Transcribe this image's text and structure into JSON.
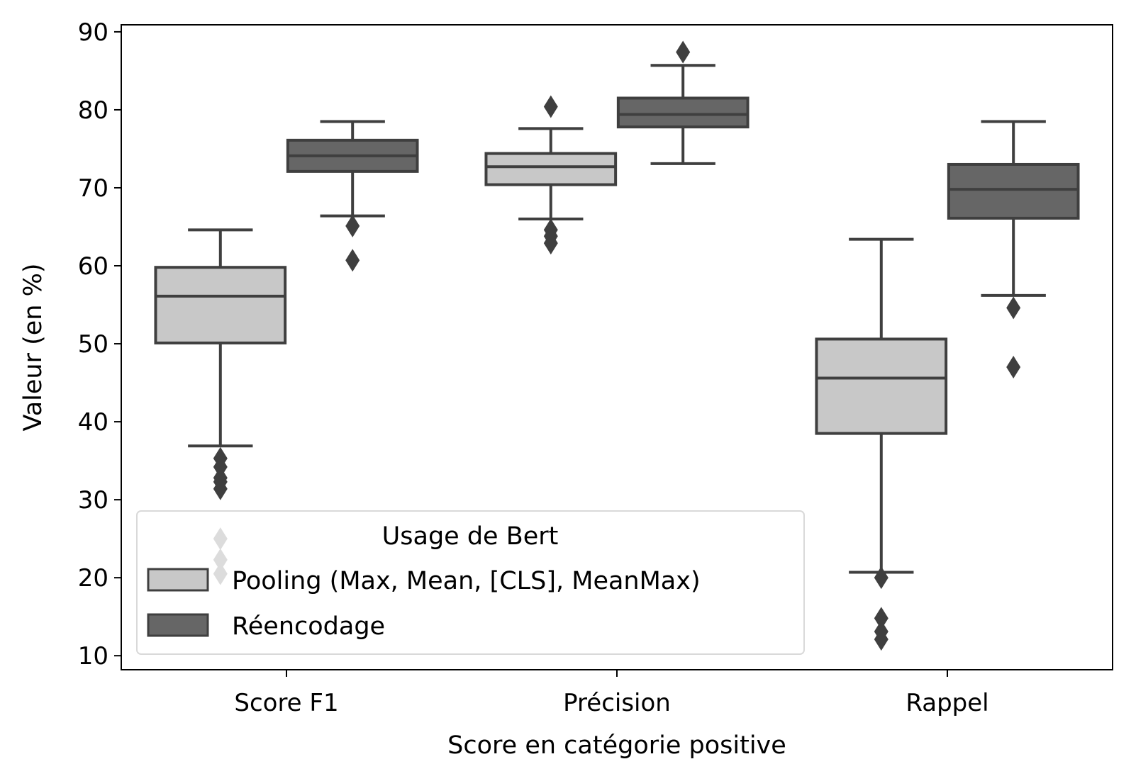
{
  "chart_data": {
    "type": "box",
    "xlabel": "Score en catégorie positive",
    "ylabel": "Valeur (en %)",
    "ylim": [
      8.2,
      90.9
    ],
    "yticks": [
      10,
      20,
      30,
      40,
      50,
      60,
      70,
      80,
      90
    ],
    "categories": [
      "Score F1",
      "Précision",
      "Rappel"
    ],
    "legend": {
      "title": "Usage de Bert",
      "placement": "lower-left"
    },
    "grid": false,
    "series": [
      {
        "name": "Pooling (Max, Mean, [CLS], MeanMax)",
        "color": "#c8c8c8",
        "boxes": [
          {
            "category": "Score F1",
            "whisker_low": 36.9,
            "q1": 50.1,
            "median": 56.1,
            "q3": 59.8,
            "whisker_high": 64.6,
            "outliers": [
              35.3,
              34.2,
              32.8,
              32.3,
              31.4,
              25.0,
              22.3,
              20.5
            ]
          },
          {
            "category": "Précision",
            "whisker_low": 66.0,
            "q1": 70.4,
            "median": 72.7,
            "q3": 74.4,
            "whisker_high": 77.6,
            "outliers": [
              80.4,
              64.6,
              63.8,
              62.9
            ]
          },
          {
            "category": "Rappel",
            "whisker_low": 20.7,
            "q1": 38.5,
            "median": 45.6,
            "q3": 50.6,
            "whisker_high": 63.4,
            "outliers": [
              20.0,
              14.8,
              13.1,
              12.1
            ]
          }
        ]
      },
      {
        "name": "Réencodage",
        "color": "#666666",
        "boxes": [
          {
            "category": "Score F1",
            "whisker_low": 66.4,
            "q1": 72.1,
            "median": 74.1,
            "q3": 76.1,
            "whisker_high": 78.5,
            "outliers": [
              65.1,
              60.7
            ]
          },
          {
            "category": "Précision",
            "whisker_low": 73.1,
            "q1": 77.8,
            "median": 79.4,
            "q3": 81.5,
            "whisker_high": 85.7,
            "outliers": [
              87.4
            ]
          },
          {
            "category": "Rappel",
            "whisker_low": 56.2,
            "q1": 66.1,
            "median": 69.8,
            "q3": 73.0,
            "whisker_high": 78.5,
            "outliers": [
              54.6,
              47.0
            ]
          }
        ]
      }
    ]
  }
}
